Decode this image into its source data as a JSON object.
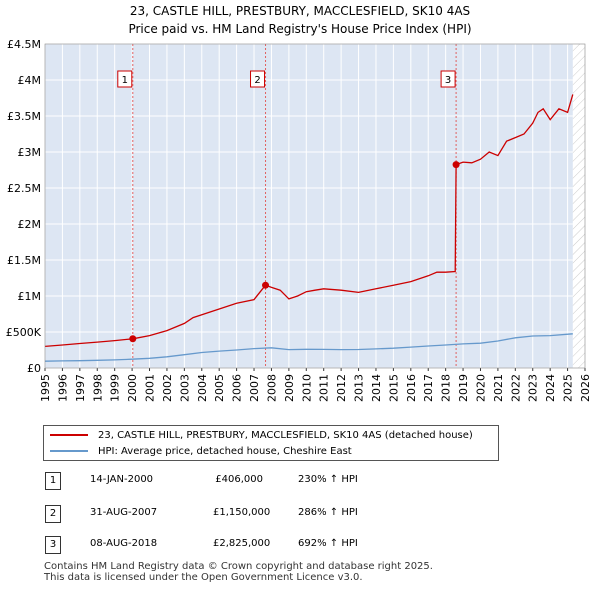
{
  "title_line1": "23, CASTLE HILL, PRESTBURY, MACCLESFIELD, SK10 4AS",
  "title_line2": "Price paid vs. HM Land Registry's House Price Index (HPI)",
  "chart_data": {
    "type": "line",
    "x_label": "",
    "y_label": "",
    "xlim": [
      1995,
      2026
    ],
    "ylim": [
      0,
      4500000
    ],
    "y_ticks": [
      0,
      500000,
      1000000,
      1500000,
      2000000,
      2500000,
      3000000,
      3500000,
      4000000,
      4500000
    ],
    "y_tick_labels": [
      "£0",
      "£500K",
      "£1M",
      "£1.5M",
      "£2M",
      "£2.5M",
      "£3M",
      "£3.5M",
      "£4M",
      "£4.5M"
    ],
    "x_ticks": [
      1995,
      1996,
      1997,
      1998,
      1999,
      2000,
      2001,
      2002,
      2003,
      2004,
      2005,
      2006,
      2007,
      2008,
      2009,
      2010,
      2011,
      2012,
      2013,
      2014,
      2015,
      2016,
      2017,
      2018,
      2019,
      2020,
      2021,
      2022,
      2023,
      2024,
      2025,
      2026
    ],
    "series": [
      {
        "name": "23, CASTLE HILL, PRESTBURY, MACCLESFIELD, SK10 4AS (detached house)",
        "color": "#cc0000",
        "x": [
          1995.0,
          1996.0,
          1997.0,
          1998.0,
          1999.0,
          2000.04,
          2001.0,
          2002.0,
          2003.0,
          2003.5,
          2004.0,
          2005.0,
          2006.0,
          2007.0,
          2007.66,
          2008.0,
          2008.5,
          2009.0,
          2009.5,
          2010.0,
          2010.5,
          2011.0,
          2012.0,
          2013.0,
          2014.0,
          2015.0,
          2016.0,
          2017.0,
          2017.5,
          2018.0,
          2018.55,
          2018.6,
          2019.0,
          2019.5,
          2020.0,
          2020.5,
          2021.0,
          2021.5,
          2022.0,
          2022.5,
          2023.0,
          2023.3,
          2023.6,
          2024.0,
          2024.5,
          2025.0,
          2025.3
        ],
        "y": [
          300000,
          320000,
          340000,
          360000,
          380000,
          406000,
          450000,
          520000,
          620000,
          700000,
          740000,
          820000,
          900000,
          950000,
          1150000,
          1120000,
          1080000,
          960000,
          1000000,
          1060000,
          1080000,
          1100000,
          1080000,
          1050000,
          1100000,
          1150000,
          1200000,
          1280000,
          1330000,
          1330000,
          1340000,
          2825000,
          2860000,
          2850000,
          2900000,
          3000000,
          2950000,
          3150000,
          3200000,
          3250000,
          3400000,
          3550000,
          3600000,
          3450000,
          3600000,
          3550000,
          3800000
        ]
      },
      {
        "name": "HPI: Average price, detached house, Cheshire East",
        "color": "#6699cc",
        "x": [
          1995,
          1996,
          1997,
          1998,
          1999,
          2000,
          2001,
          2002,
          2003,
          2004,
          2005,
          2006,
          2007,
          2008,
          2009,
          2010,
          2011,
          2012,
          2013,
          2014,
          2015,
          2016,
          2017,
          2018,
          2019,
          2020,
          2021,
          2022,
          2023,
          2024,
          2025.3
        ],
        "y": [
          95000,
          98000,
          102000,
          107000,
          113000,
          122000,
          135000,
          155000,
          185000,
          215000,
          235000,
          250000,
          270000,
          280000,
          255000,
          260000,
          258000,
          255000,
          257000,
          265000,
          275000,
          290000,
          305000,
          320000,
          335000,
          345000,
          375000,
          420000,
          445000,
          450000,
          475000
        ]
      }
    ],
    "sale_markers": [
      {
        "label": "1",
        "x": 2000.04,
        "y": 406000
      },
      {
        "label": "2",
        "x": 2007.66,
        "y": 1150000
      },
      {
        "label": "3",
        "x": 2018.6,
        "y": 2825000
      }
    ],
    "hatch_after": 2025.3,
    "grid": true
  },
  "legend": [
    {
      "label": "23, CASTLE HILL, PRESTBURY, MACCLESFIELD, SK10 4AS (detached house)",
      "color": "#cc0000"
    },
    {
      "label": "HPI: Average price, detached house, Cheshire East",
      "color": "#6699cc"
    }
  ],
  "events": [
    {
      "num": "1",
      "date": "14-JAN-2000",
      "price": "£406,000",
      "hpi": "230% ↑ HPI"
    },
    {
      "num": "2",
      "date": "31-AUG-2007",
      "price": "£1,150,000",
      "hpi": "286% ↑ HPI"
    },
    {
      "num": "3",
      "date": "08-AUG-2018",
      "price": "£2,825,000",
      "hpi": "692% ↑ HPI"
    }
  ],
  "footer_line1": "Contains HM Land Registry data © Crown copyright and database right 2025.",
  "footer_line2": "This data is licensed under the Open Government Licence v3.0."
}
